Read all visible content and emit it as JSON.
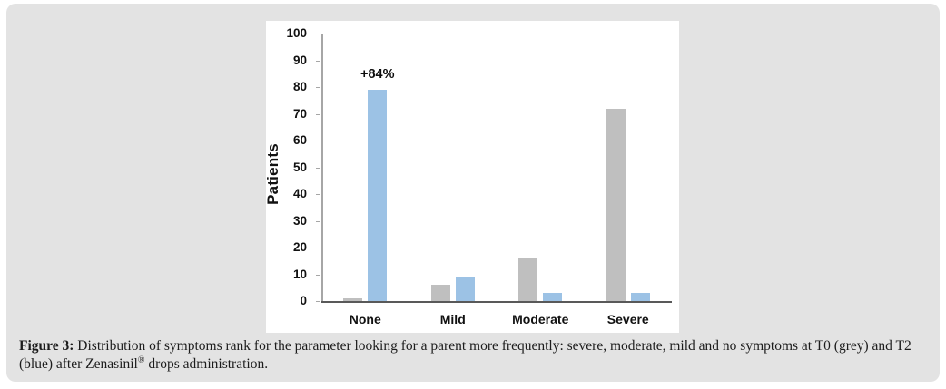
{
  "caption": {
    "label": "Figure 3:",
    "body": " Distribution of symptoms rank for the parameter looking for a parent more frequently: severe, moderate, mild and no symptoms at T0 (grey) and T2 (blue) after ",
    "brand": "Zenasinil",
    "reg": "®",
    "tail": " drops administration."
  },
  "colors": {
    "card_background": "#e3e3e3",
    "panel_background": "#ffffff",
    "grey_series": "#bfbfbf",
    "blue_series": "#9cc2e5",
    "y_axis_line": "#a6a6a6",
    "x_axis_line": "#595959",
    "text": "#111111"
  },
  "chart_data": {
    "type": "bar",
    "title": "",
    "xlabel": "",
    "ylabel": "Patients",
    "categories": [
      "None",
      "Mild",
      "Moderate",
      "Severe"
    ],
    "series": [
      {
        "name": "T0 (grey)",
        "color": "#bfbfbf",
        "values": [
          1,
          6,
          16,
          72
        ]
      },
      {
        "name": "T2 (blue)",
        "color": "#9cc2e5",
        "values": [
          79,
          9,
          3,
          3
        ]
      }
    ],
    "ylim": [
      0,
      100
    ],
    "y_ticks": [
      0,
      10,
      20,
      30,
      40,
      50,
      60,
      70,
      80,
      90,
      100
    ],
    "grid": false,
    "legend_position": "none",
    "annotation": {
      "text": "+84%",
      "series_index": 1,
      "category_index": 0
    }
  }
}
